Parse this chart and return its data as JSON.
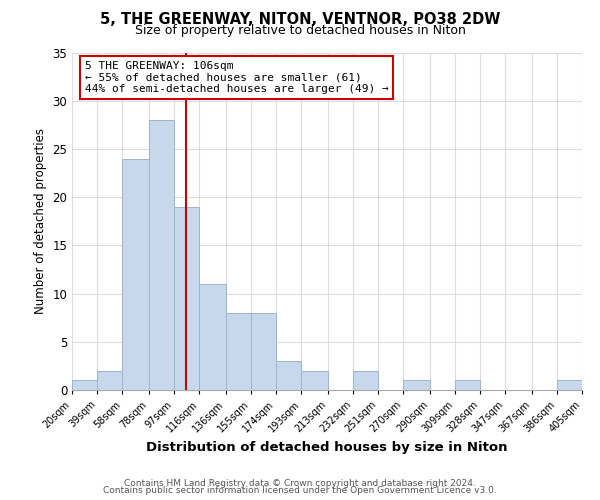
{
  "title": "5, THE GREENWAY, NITON, VENTNOR, PO38 2DW",
  "subtitle": "Size of property relative to detached houses in Niton",
  "xlabel": "Distribution of detached houses by size in Niton",
  "ylabel": "Number of detached properties",
  "bar_color": "#c8d8ec",
  "bar_edge_color": "#9ab5d0",
  "bin_edges": [
    20,
    39,
    58,
    78,
    97,
    116,
    136,
    155,
    174,
    193,
    213,
    232,
    251,
    270,
    290,
    309,
    328,
    347,
    367,
    386,
    405
  ],
  "counts": [
    1,
    2,
    24,
    28,
    19,
    11,
    8,
    8,
    3,
    2,
    0,
    2,
    0,
    1,
    0,
    1,
    0,
    0,
    0,
    1
  ],
  "tick_labels": [
    "20sqm",
    "39sqm",
    "58sqm",
    "78sqm",
    "97sqm",
    "116sqm",
    "136sqm",
    "155sqm",
    "174sqm",
    "193sqm",
    "213sqm",
    "232sqm",
    "251sqm",
    "270sqm",
    "290sqm",
    "309sqm",
    "328sqm",
    "347sqm",
    "367sqm",
    "386sqm",
    "405sqm"
  ],
  "ylim": [
    0,
    35
  ],
  "yticks": [
    0,
    5,
    10,
    15,
    20,
    25,
    30,
    35
  ],
  "property_line_x": 106,
  "annotation_title": "5 THE GREENWAY: 106sqm",
  "annotation_line1": "← 55% of detached houses are smaller (61)",
  "annotation_line2": "44% of semi-detached houses are larger (49) →",
  "annotation_box_color": "#ffffff",
  "annotation_box_edge": "#cc0000",
  "line_color": "#cc0000",
  "footer1": "Contains HM Land Registry data © Crown copyright and database right 2024.",
  "footer2": "Contains public sector information licensed under the Open Government Licence v3.0.",
  "background_color": "#ffffff",
  "grid_color": "#dddddd"
}
